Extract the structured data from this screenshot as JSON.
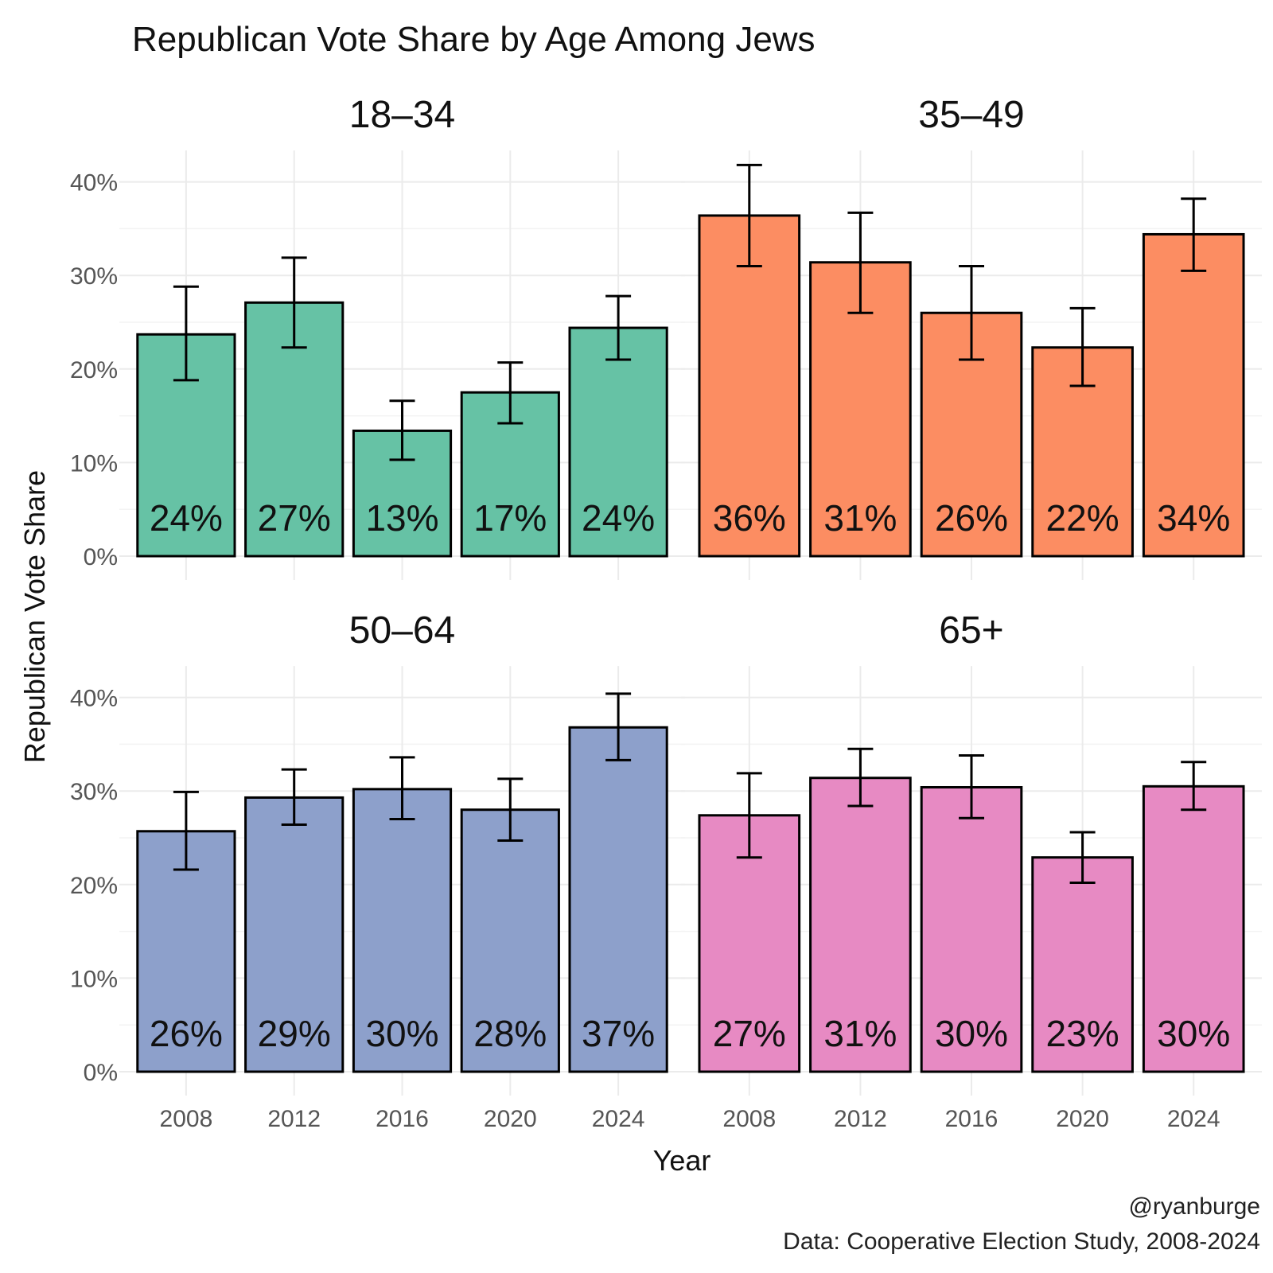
{
  "chart_data": {
    "type": "bar",
    "title": "Republican Vote Share by Age Among Jews",
    "xlabel": "Year",
    "ylabel": "Republican Vote Share",
    "categories": [
      "2008",
      "2012",
      "2016",
      "2020",
      "2024"
    ],
    "yticks": [
      "0%",
      "10%",
      "20%",
      "30%",
      "40%"
    ],
    "ylim": [
      0,
      0.42
    ],
    "grid": true,
    "legend": "none",
    "caption": [
      "@ryanburge",
      "Data: Cooperative Election Study, 2008-2024"
    ],
    "facets": [
      {
        "name": "18–34",
        "color": "#66C2A5",
        "values": [
          0.237,
          0.271,
          0.134,
          0.175,
          0.244
        ],
        "labels": [
          "24%",
          "27%",
          "13%",
          "17%",
          "24%"
        ],
        "err_low": [
          0.188,
          0.223,
          0.103,
          0.142,
          0.21
        ],
        "err_high": [
          0.288,
          0.319,
          0.166,
          0.207,
          0.278
        ]
      },
      {
        "name": "35–49",
        "color": "#FC8D62",
        "values": [
          0.364,
          0.314,
          0.26,
          0.223,
          0.344
        ],
        "labels": [
          "36%",
          "31%",
          "26%",
          "22%",
          "34%"
        ],
        "err_low": [
          0.31,
          0.26,
          0.21,
          0.182,
          0.305
        ],
        "err_high": [
          0.418,
          0.367,
          0.31,
          0.265,
          0.382
        ]
      },
      {
        "name": "50–64",
        "color": "#8DA0CB",
        "values": [
          0.257,
          0.293,
          0.302,
          0.28,
          0.368
        ],
        "labels": [
          "26%",
          "29%",
          "30%",
          "28%",
          "37%"
        ],
        "err_low": [
          0.216,
          0.264,
          0.27,
          0.247,
          0.333
        ],
        "err_high": [
          0.299,
          0.323,
          0.336,
          0.313,
          0.404
        ]
      },
      {
        "name": "65+",
        "color": "#E78AC3",
        "values": [
          0.274,
          0.314,
          0.304,
          0.229,
          0.305
        ],
        "labels": [
          "27%",
          "31%",
          "30%",
          "23%",
          "30%"
        ],
        "err_low": [
          0.229,
          0.284,
          0.271,
          0.202,
          0.28
        ],
        "err_high": [
          0.319,
          0.345,
          0.338,
          0.256,
          0.331
        ]
      }
    ]
  }
}
